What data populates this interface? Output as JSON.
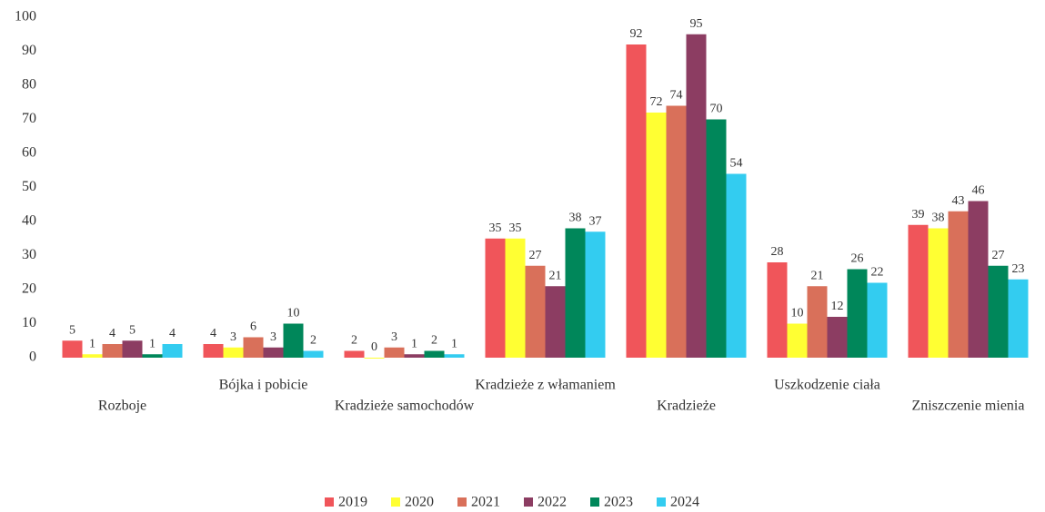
{
  "chart_data": {
    "type": "bar",
    "categories": [
      "Rozboje",
      "Bójka i pobicie",
      "Kradzieże samochodów",
      "Kradzieże z włamaniem",
      "Kradzieże",
      "Uszkodzenie ciała",
      "Zniszczenie mienia"
    ],
    "series": [
      {
        "name": "2019",
        "color": "#f0555a",
        "values": [
          5,
          4,
          2,
          35,
          92,
          28,
          39
        ]
      },
      {
        "name": "2020",
        "color": "#ffff33",
        "values": [
          1,
          3,
          0,
          35,
          72,
          10,
          38
        ]
      },
      {
        "name": "2021",
        "color": "#d9705a",
        "values": [
          4,
          6,
          3,
          27,
          74,
          21,
          43
        ]
      },
      {
        "name": "2022",
        "color": "#8c3d62",
        "values": [
          5,
          3,
          1,
          21,
          95,
          12,
          46
        ]
      },
      {
        "name": "2023",
        "color": "#00875a",
        "values": [
          1,
          10,
          2,
          38,
          70,
          26,
          27
        ]
      },
      {
        "name": "2024",
        "color": "#33ccf0",
        "values": [
          4,
          2,
          1,
          37,
          54,
          22,
          23
        ]
      }
    ],
    "ylim": [
      0,
      100
    ],
    "yticks": [
      0,
      10,
      20,
      30,
      40,
      50,
      60,
      70,
      80,
      90,
      100
    ],
    "grid": false,
    "legend": "bottom"
  }
}
